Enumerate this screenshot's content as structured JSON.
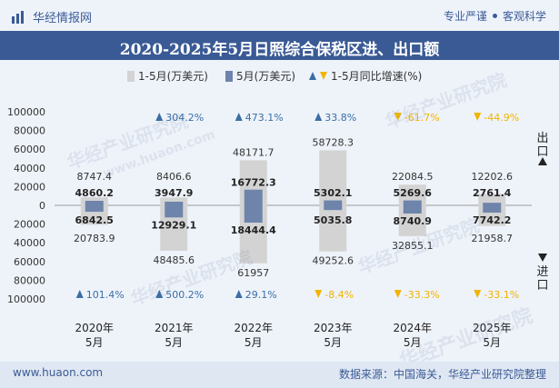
{
  "header": {
    "brand": "华经情报网",
    "tag1": "专业严谨",
    "tag2": "客观科学",
    "title": "2020-2025年5月日照综合保税区进、出口额"
  },
  "footer": {
    "site": "www.huaon.com",
    "source": "数据来源：中国海关，华经产业研究院整理"
  },
  "watermark": "华经产业研究院",
  "watermark_url": "www.huaon.com",
  "colors": {
    "cumulative_bar": "#d3d3d3",
    "monthly_bar": "#6e84ab",
    "growth_up": "#3a6ea5",
    "growth_down": "#f0b400",
    "title_band": "#3a5a95"
  },
  "chart_data": {
    "type": "bar",
    "categories": [
      "2020年\n5月",
      "2021年\n5月",
      "2022年\n5月",
      "2023年\n5月",
      "2024年\n5月",
      "2025年\n5月"
    ],
    "legend": [
      "1-5月(万美元)",
      "5月(万美元)",
      "1-5月同比增速(%)"
    ],
    "export": {
      "cumulative": [
        8747.4,
        8406.6,
        48171.7,
        58728.3,
        22084.5,
        12202.6
      ],
      "monthly": [
        4860.2,
        3947.9,
        16772.3,
        5302.1,
        5269.6,
        2761.4
      ],
      "cumulative_labels": [
        "8747.4",
        "8406.6",
        "48171.7",
        "58728.3",
        "22084.5",
        "12202.6"
      ],
      "monthly_labels": [
        "4860.2",
        "3947.9",
        "16772.3",
        "5302.1",
        "5269.6",
        "2761.4"
      ],
      "growth": [
        null,
        304.2,
        473.1,
        33.8,
        -61.7,
        -44.9
      ],
      "growth_labels": [
        "",
        "304.2%",
        "473.1%",
        "33.8%",
        "-61.7%",
        "-44.9%"
      ]
    },
    "import": {
      "cumulative": [
        20783.9,
        48485.6,
        61957,
        49252.6,
        32855.1,
        21958.7
      ],
      "monthly": [
        6842.5,
        12929.1,
        18444.4,
        5035.8,
        8740.9,
        7742.2
      ],
      "cumulative_labels": [
        "20783.9",
        "48485.6",
        "61957",
        "49252.6",
        "32855.1",
        "21958.7"
      ],
      "monthly_labels": [
        "6842.5",
        "12929.1",
        "18444.4",
        "5035.8",
        "8740.9",
        "7742.2"
      ],
      "growth": [
        101.4,
        500.2,
        29.1,
        -8.4,
        -33.3,
        -33.1
      ],
      "growth_labels": [
        "101.4%",
        "500.2%",
        "29.1%",
        "-8.4%",
        "-33.3%",
        "-33.1%"
      ]
    },
    "y_ticks": [
      "100000",
      "80000",
      "60000",
      "40000",
      "20000",
      "0",
      "20000",
      "40000",
      "60000",
      "80000",
      "100000"
    ],
    "ylim": [
      -100000,
      100000
    ],
    "side_labels": {
      "export": "出口",
      "import": "进口"
    }
  }
}
